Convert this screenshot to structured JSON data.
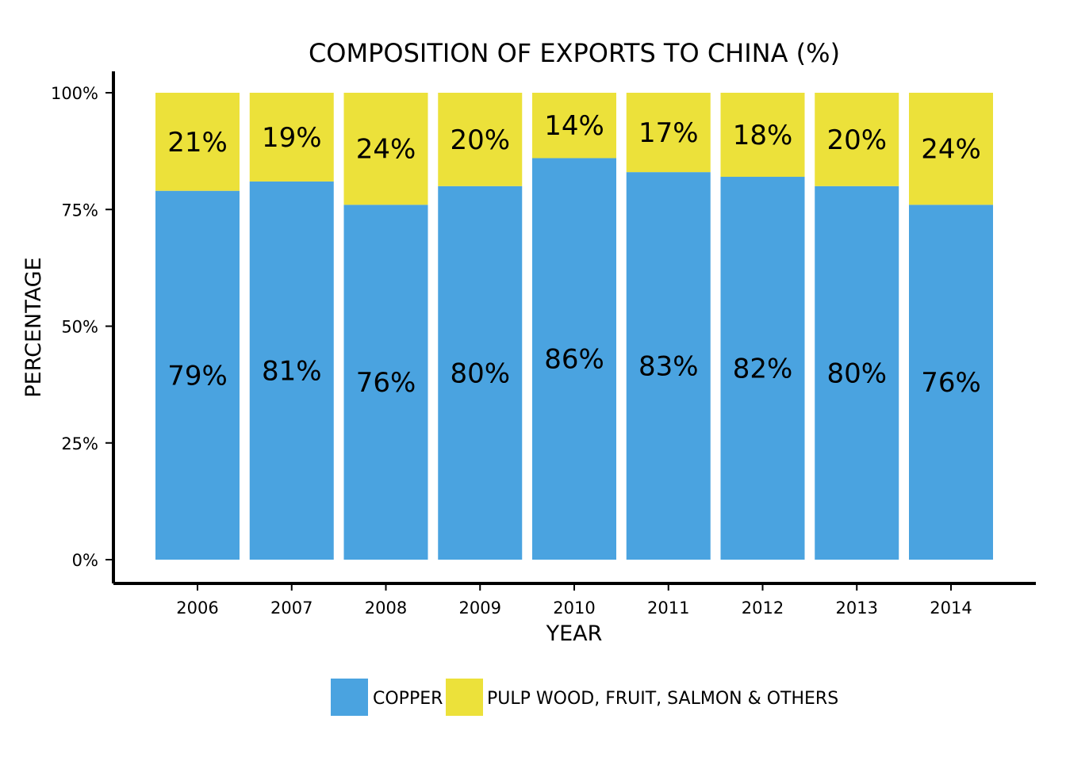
{
  "chart_data": {
    "type": "bar",
    "stacked": true,
    "title": "COMPOSITION OF EXPORTS TO CHINA (%)",
    "xlabel": "YEAR",
    "ylabel": "PERCENTAGE",
    "categories": [
      "2006",
      "2007",
      "2008",
      "2009",
      "2010",
      "2011",
      "2012",
      "2013",
      "2014"
    ],
    "series": [
      {
        "name": "COPPER",
        "color": "#4aa3e0",
        "values": [
          79,
          81,
          76,
          80,
          86,
          83,
          82,
          80,
          76
        ],
        "labels": [
          "79%",
          "81%",
          "76%",
          "80%",
          "86%",
          "83%",
          "82%",
          "80%",
          "76%"
        ]
      },
      {
        "name": "PULP WOOD, FRUIT, SALMON & OTHERS",
        "color": "#ece13a",
        "values": [
          21,
          19,
          24,
          20,
          14,
          17,
          18,
          20,
          24
        ],
        "labels": [
          "21%",
          "19%",
          "24%",
          "20%",
          "14%",
          "17%",
          "18%",
          "20%",
          "24%"
        ]
      }
    ],
    "ylim": [
      0,
      100
    ],
    "yticks": [
      "0%",
      "25%",
      "50%",
      "75%",
      "100%"
    ],
    "legend": "bottom",
    "grid": false
  }
}
